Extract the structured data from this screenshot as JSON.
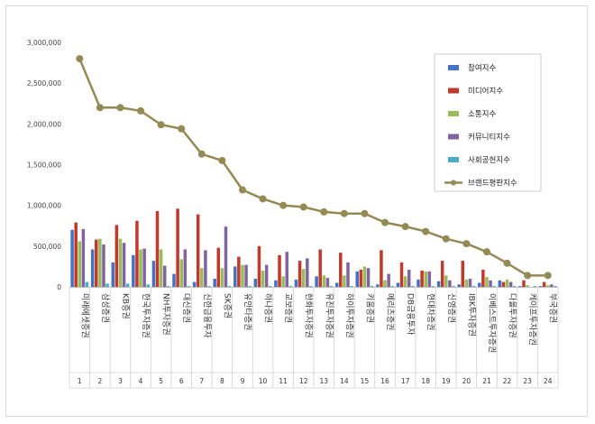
{
  "chart_data": {
    "type": "bar",
    "categories": [
      "미래에셋증권",
      "삼성증권",
      "KB증권",
      "한국투자증권",
      "NH투자증권",
      "대신증권",
      "신한금융투자",
      "SK증권",
      "유안타증권",
      "하나증권",
      "교보증권",
      "한화투자증권",
      "유진투자증권",
      "하이투자증권",
      "키움증권",
      "메리츠증권",
      "DB금융투자",
      "현대차증권",
      "신영증권",
      "IBK투자증권",
      "이베스트투자증권",
      "다올투자증권",
      "케이프투자증권",
      "부국증권"
    ],
    "index_labels": [
      "1",
      "2",
      "3",
      "4",
      "5",
      "6",
      "7",
      "8",
      "9",
      "10",
      "11",
      "12",
      "13",
      "14",
      "15",
      "16",
      "17",
      "18",
      "19",
      "20",
      "21",
      "22",
      "23",
      "24"
    ],
    "series": [
      {
        "name": "참여지수",
        "color": "#4472c4",
        "values": [
          700000,
          460000,
          300000,
          390000,
          320000,
          160000,
          60000,
          100000,
          250000,
          100000,
          80000,
          90000,
          130000,
          50000,
          190000,
          30000,
          50000,
          90000,
          70000,
          30000,
          50000,
          80000,
          10000,
          10000
        ]
      },
      {
        "name": "미디어지수",
        "color": "#c0392b",
        "values": [
          790000,
          580000,
          760000,
          810000,
          930000,
          960000,
          890000,
          480000,
          370000,
          500000,
          390000,
          320000,
          460000,
          420000,
          210000,
          450000,
          300000,
          200000,
          320000,
          320000,
          210000,
          60000,
          80000,
          60000
        ]
      },
      {
        "name": "소통지수",
        "color": "#9bbb59",
        "values": [
          560000,
          590000,
          590000,
          460000,
          460000,
          340000,
          230000,
          230000,
          270000,
          200000,
          130000,
          220000,
          140000,
          140000,
          250000,
          80000,
          130000,
          190000,
          140000,
          90000,
          120000,
          90000,
          20000,
          20000
        ]
      },
      {
        "name": "커뮤니티지수",
        "color": "#8064a2",
        "values": [
          710000,
          520000,
          540000,
          470000,
          260000,
          460000,
          450000,
          740000,
          270000,
          270000,
          430000,
          350000,
          110000,
          300000,
          230000,
          160000,
          210000,
          190000,
          80000,
          100000,
          80000,
          60000,
          0,
          30000
        ]
      },
      {
        "name": "사회공헌지수",
        "color": "#4bacc6",
        "values": [
          60000,
          40000,
          40000,
          30000,
          10000,
          10000,
          10000,
          10000,
          10000,
          10000,
          10000,
          10000,
          10000,
          10000,
          10000,
          10000,
          10000,
          10000,
          10000,
          10000,
          10000,
          10000,
          10000,
          10000
        ]
      }
    ],
    "line_series": {
      "name": "브랜드평판지수",
      "color": "#948a54",
      "values": [
        2800000,
        2200000,
        2200000,
        2160000,
        1990000,
        1940000,
        1630000,
        1550000,
        1190000,
        1080000,
        1000000,
        980000,
        920000,
        900000,
        900000,
        790000,
        740000,
        680000,
        590000,
        530000,
        430000,
        290000,
        140000,
        140000
      ]
    },
    "y_ticks": [
      "0",
      "500,000",
      "1,000,000",
      "1,500,000",
      "2,000,000",
      "2,500,000",
      "3,000,000"
    ],
    "ylim": [
      0,
      3000000
    ],
    "grid": false,
    "legend_position": "top-right"
  }
}
